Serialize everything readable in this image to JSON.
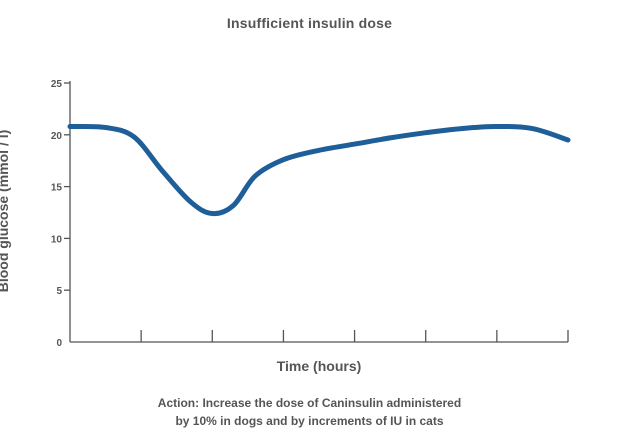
{
  "chart_data": {
    "type": "line",
    "title": "Insufficient insulin dose",
    "xlabel": "Time (hours)",
    "ylabel": "Blood glucose (mmol / l)",
    "ylim": [
      0,
      25
    ],
    "yticks": [
      0,
      5,
      10,
      15,
      20,
      25
    ],
    "xlim": [
      0,
      7
    ],
    "xticks": [
      0,
      1,
      2,
      3,
      4,
      5,
      6,
      7
    ],
    "grid": false,
    "series": [
      {
        "color": "#1f5f99",
        "x": [
          0,
          0.5,
          0.9,
          1.3,
          1.7,
          2.0,
          2.3,
          2.6,
          3.0,
          3.5,
          4.0,
          4.5,
          5.0,
          5.5,
          6.0,
          6.5,
          7.0
        ],
        "y": [
          20.8,
          20.7,
          19.8,
          16.5,
          13.5,
          12.4,
          13.2,
          16.0,
          17.6,
          18.5,
          19.1,
          19.7,
          20.2,
          20.6,
          20.8,
          20.6,
          19.5
        ]
      }
    ]
  },
  "note": {
    "line1": "Action: Increase the dose of Caninsulin administered",
    "line2": "by 10% in dogs and by increments of IU in cats"
  }
}
